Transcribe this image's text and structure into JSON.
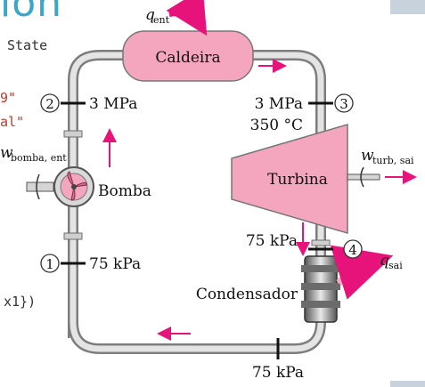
{
  "slide": {
    "title_fragment": "ion",
    "code_lines": [
      "State",
      "9\"",
      "al\"",
      "x1})"
    ]
  },
  "diagram": {
    "boiler_label": "Caldeira",
    "turbine_label": "Turbina",
    "pump_label": "Bomba",
    "condenser_label": "Condensador",
    "q_in": {
      "symbol": "q",
      "sub": "ent"
    },
    "q_out": {
      "symbol": "q",
      "sub": "sai"
    },
    "w_turb": {
      "symbol": "w",
      "sub": "turb, sai"
    },
    "w_pump": {
      "symbol": "w",
      "sub": "bomba, ent"
    },
    "states": [
      {
        "id": "1",
        "label": "75 kPa"
      },
      {
        "id": "2",
        "label": "3 MPa"
      },
      {
        "id": "3",
        "label": "3 MPa",
        "label2": "350 °C"
      },
      {
        "id": "4",
        "label": "75 kPa"
      }
    ],
    "bottom_label": "75 kPa"
  },
  "colors": {
    "arrow": "#e8137a",
    "component": "#f4a6bf",
    "pipe": "#b8b8b8",
    "title": "#3aa6c8",
    "string": "#c0392b"
  }
}
